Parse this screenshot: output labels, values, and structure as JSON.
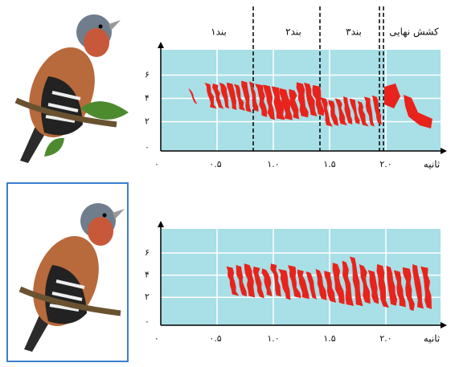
{
  "top_panel": {
    "section_labels": [
      "بند۱",
      "بند۲",
      "بند۳",
      "کشش نهایی"
    ],
    "y_ticks": [
      "۶",
      "۴",
      "۲",
      "۰"
    ],
    "x_ticks": [
      "۰",
      "۰.۵",
      "۱.۰",
      "۱.۵",
      "۲.۰"
    ],
    "x_axis_label": "ثانیه"
  },
  "bottom_panel": {
    "y_ticks": [
      "۶",
      "۴",
      "۲",
      "۰"
    ],
    "x_ticks": [
      "۰",
      "۰.۵",
      "۱.۰",
      "۱.۵",
      "۲.۰"
    ],
    "x_axis_label": "ثانیه"
  }
}
